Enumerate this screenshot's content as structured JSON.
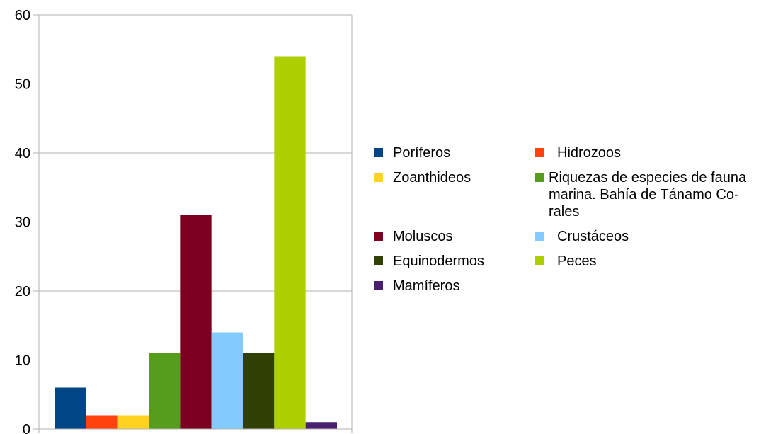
{
  "chart_data": {
    "type": "bar",
    "categories": [
      "Poríferos",
      "Hidrozoos",
      "Zoanthideos",
      "Riquezas de especies de fauna marina. Bahía de Tánamo Corales",
      "Moluscos",
      "Crustáceos",
      "Equinodermos",
      "Peces",
      "Mamíferos"
    ],
    "series": [
      {
        "name": "Poríferos",
        "value": 6,
        "color": "#004586"
      },
      {
        "name": "Hidrozoos",
        "value": 2,
        "color": "#ff420e"
      },
      {
        "name": "Zoanthideos",
        "value": 2,
        "color": "#ffd320"
      },
      {
        "name": "Riquezas de especies de fauna marina. Bahía de Tánamo Corales",
        "value": 11,
        "color": "#579d1c"
      },
      {
        "name": "Moluscos",
        "value": 31,
        "color": "#7e0021"
      },
      {
        "name": "Crustáceos",
        "value": 14,
        "color": "#83caff"
      },
      {
        "name": "Equinodermos",
        "value": 11,
        "color": "#314004"
      },
      {
        "name": "Peces",
        "value": 54,
        "color": "#aecf00"
      },
      {
        "name": "Mamíferos",
        "value": 1,
        "color": "#4b1f6f"
      }
    ],
    "ylim": [
      0,
      60
    ],
    "yticks": [
      "0",
      "10",
      "20",
      "30",
      "40",
      "50",
      "60"
    ],
    "grid": true,
    "legend_position": "right"
  },
  "legend": {
    "rows": [
      [
        {
          "label": "Poríferos",
          "color": "#004586"
        },
        {
          "label": "Hidrozoos",
          "color": "#ff420e"
        }
      ],
      [
        {
          "label": "Zoanthideos",
          "color": "#ffd320"
        },
        {
          "label": "Riquezas de especies de fauna marina. Bahía de Tánamo  Co-rales",
          "color": "#579d1c",
          "lines": [
            "Riquezas de especies de fauna",
            "marina. Bahía de Tánamo  Co-",
            "rales"
          ]
        }
      ],
      [
        {
          "label": "Moluscos",
          "color": "#7e0021"
        },
        {
          "label": "Crustáceos",
          "color": "#83caff"
        }
      ],
      [
        {
          "label": "Equinodermos",
          "color": "#314004"
        },
        {
          "label": "Peces",
          "color": "#aecf00"
        }
      ],
      [
        {
          "label": "Mamíferos",
          "color": "#4b1f6f"
        }
      ]
    ]
  }
}
